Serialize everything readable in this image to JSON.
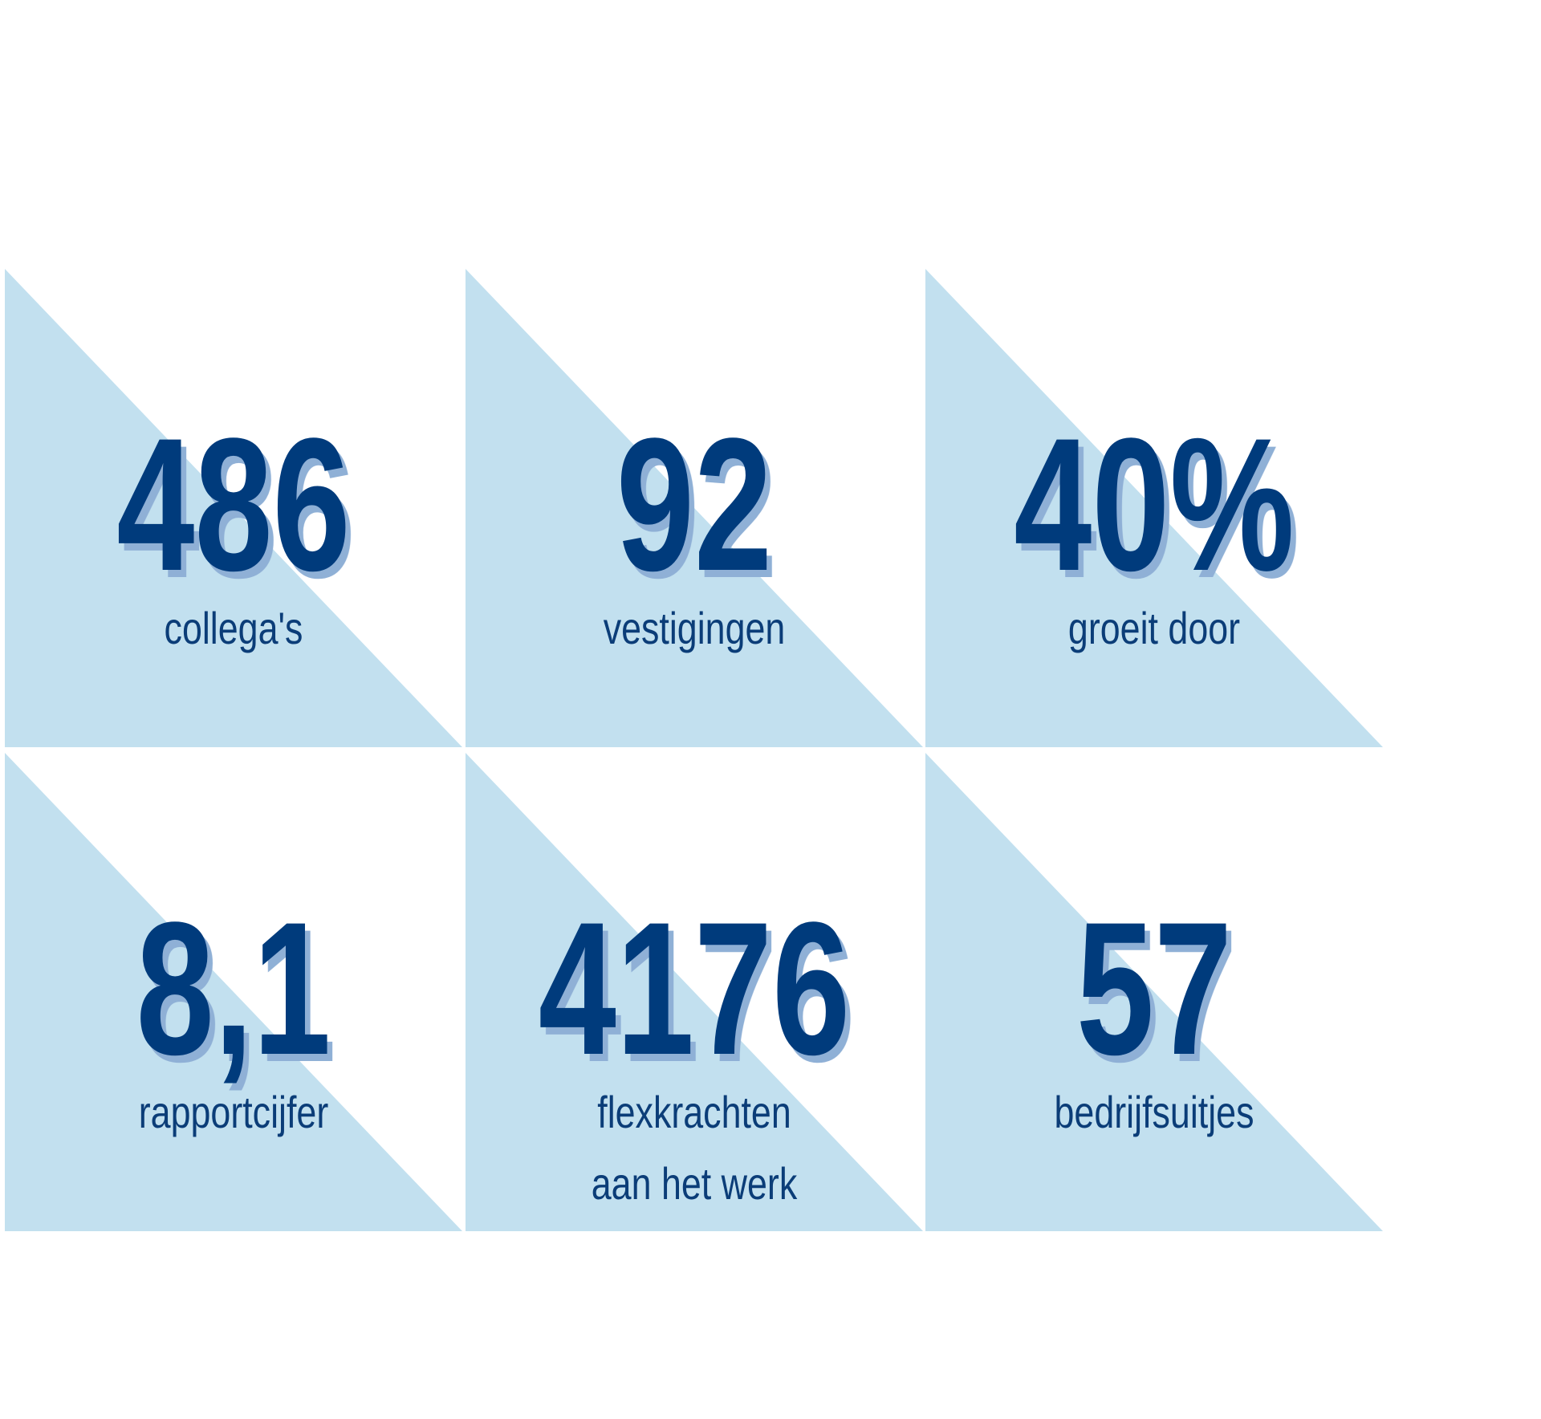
{
  "stats": [
    {
      "value": "486",
      "label": [
        "collega's"
      ]
    },
    {
      "value": "92",
      "label": [
        "vestigingen"
      ]
    },
    {
      "value": "40%",
      "label": [
        "groeit door"
      ]
    },
    {
      "value": "8,1",
      "label": [
        "rapportcijfer"
      ]
    },
    {
      "value": "4176",
      "label": [
        "flexkrachten",
        "aan het werk"
      ]
    },
    {
      "value": "57",
      "label": [
        "bedrijfsuitjes"
      ]
    }
  ]
}
